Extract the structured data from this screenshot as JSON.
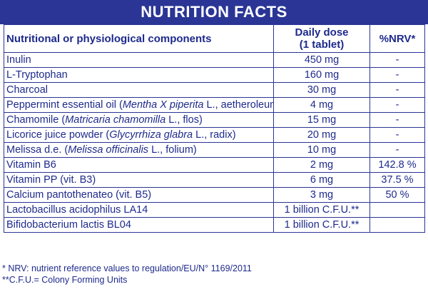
{
  "title": "NUTRITION FACTS",
  "headers": {
    "component": "Nutritional or physiological components",
    "dose_line1": "Daily dose",
    "dose_line2": "(1 tablet)",
    "nrv": "%NRV*"
  },
  "rows": [
    {
      "pre": "Inulin",
      "sci": "",
      "post": "",
      "dose": "450 mg",
      "nrv": "-"
    },
    {
      "pre": "L-Tryptophan",
      "sci": "",
      "post": "",
      "dose": "160 mg",
      "nrv": "-"
    },
    {
      "pre": "Charcoal",
      "sci": "",
      "post": "",
      "dose": "30 mg",
      "nrv": "-"
    },
    {
      "pre": "Peppermint essential oil (",
      "sci": "Mentha X piperita",
      "post": " L., aetheroleum)",
      "dose": "4 mg",
      "nrv": "-"
    },
    {
      "pre": "Chamomile (",
      "sci": "Matricaria chamomilla",
      "post": " L., flos)",
      "dose": "15 mg",
      "nrv": "-"
    },
    {
      "pre": "Licorice juice powder (",
      "sci": "Glycyrrhiza glabra",
      "post": " L., radix)",
      "dose": "20 mg",
      "nrv": "-"
    },
    {
      "pre": "Melissa d.e. (",
      "sci": "Melissa officinalis",
      "post": " L., folium)",
      "dose": "10 mg",
      "nrv": "-"
    },
    {
      "pre": "Vitamin B6",
      "sci": "",
      "post": "",
      "dose": "2 mg",
      "nrv": "142.8 %"
    },
    {
      "pre": "Vitamin PP (vit. B3)",
      "sci": "",
      "post": "",
      "dose": "6 mg",
      "nrv": "37.5 %"
    },
    {
      "pre": "Calcium pantothenateo (vit. B5)",
      "sci": "",
      "post": "",
      "dose": "3 mg",
      "nrv": "50 %"
    },
    {
      "pre": "Lactobacillus acidophilus LA14",
      "sci": "",
      "post": "",
      "dose": "1 billion C.F.U.**",
      "nrv": ""
    },
    {
      "pre": "Bifidobacterium lactis BL04",
      "sci": "",
      "post": "",
      "dose": "1 billion C.F.U.**",
      "nrv": ""
    }
  ],
  "footnotes": [
    "* NRV: nutrient reference values to regulation/EU/N° 1169/2011",
    "**C.F.U.= Colony Forming Units"
  ],
  "colors": {
    "accent": "#2a3595",
    "text": "#1e2a8c"
  }
}
